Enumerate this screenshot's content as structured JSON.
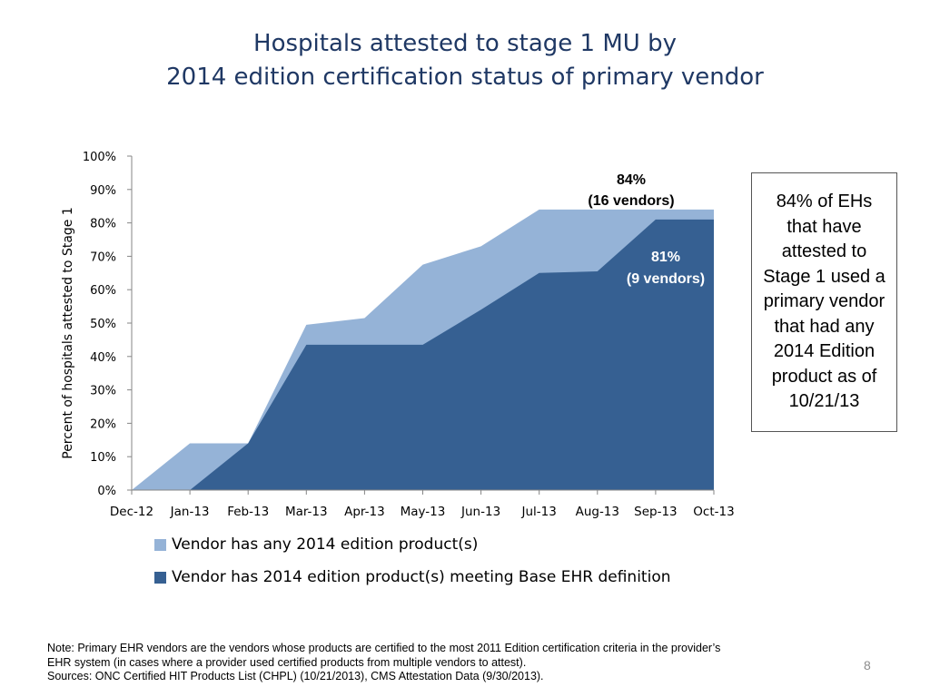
{
  "slide": {
    "title_line1": "Hospitals attested to stage 1 MU by",
    "title_line2": "2014 edition certification status of primary vendor",
    "page_number": "8"
  },
  "callout": {
    "text": "84% of EHs that have attested to Stage 1 used a primary vendor that had any 2014 Edition product as of 10/21/13"
  },
  "footnote": {
    "line1": "Note: Primary EHR vendors are the vendors whose products are certified to the most 2011 Edition certification criteria in the provider’s",
    "line2": "EHR system (in cases where a provider used certified products from  multiple vendors to attest).",
    "line3": "Sources: ONC Certified HIT Products List (CHPL) (10/21/2013), CMS Attestation Data (9/30/2013)."
  },
  "chart_data": {
    "type": "area",
    "categories": [
      "Dec-12",
      "Jan-13",
      "Feb-13",
      "Mar-13",
      "Apr-13",
      "May-13",
      "Jun-13",
      "Jul-13",
      "Aug-13",
      "Sep-13",
      "Oct-13"
    ],
    "ylabel": "Percent of hospitals attested to Stage 1",
    "ylim": [
      0,
      100
    ],
    "yticks": [
      "0%",
      "10%",
      "20%",
      "30%",
      "40%",
      "50%",
      "60%",
      "70%",
      "80%",
      "90%",
      "100%"
    ],
    "series": [
      {
        "name": "Vendor has any 2014 edition product(s)",
        "color": "#95b3d7",
        "values": [
          0,
          14,
          14,
          49.5,
          51.5,
          67.5,
          73,
          84,
          84,
          84,
          84
        ]
      },
      {
        "name": "Vendor has 2014 edition product(s) meeting Base EHR definition",
        "color": "#366092",
        "values": [
          0,
          0,
          14,
          43.5,
          43.5,
          43.5,
          54,
          65,
          65.5,
          81,
          81
        ]
      }
    ],
    "annotations": [
      {
        "line1": "84%",
        "line2": "(16 vendors)",
        "color": "#000000"
      },
      {
        "line1": "81%",
        "line2": "(9 vendors)",
        "color": "#ffffff"
      }
    ],
    "legend_position": "bottom"
  }
}
